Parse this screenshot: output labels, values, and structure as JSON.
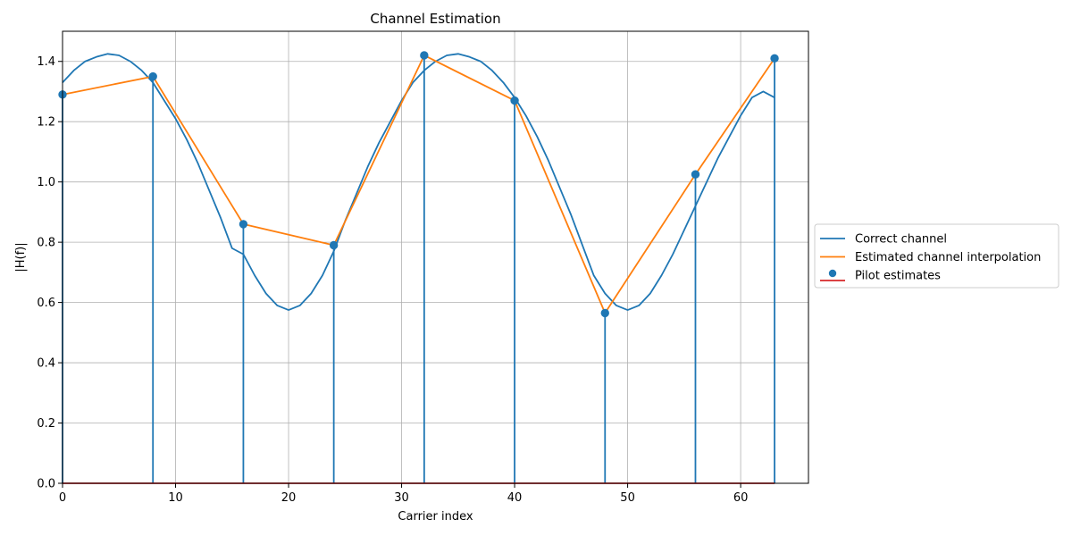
{
  "chart_data": {
    "type": "line",
    "title": "Channel Estimation",
    "xlabel": "Carrier index",
    "ylabel": "|H(f)|",
    "xlim": [
      0,
      66
    ],
    "ylim": [
      0,
      1.5
    ],
    "xticks": [
      0,
      10,
      20,
      30,
      40,
      50,
      60
    ],
    "yticks": [
      0.0,
      0.2,
      0.4,
      0.6,
      0.8,
      1.0,
      1.2,
      1.4
    ],
    "xtick_labels": [
      "0",
      "10",
      "20",
      "30",
      "40",
      "50",
      "60"
    ],
    "ytick_labels": [
      "0.0",
      "0.2",
      "0.4",
      "0.6",
      "0.8",
      "1.0",
      "1.2",
      "1.4"
    ],
    "grid": true,
    "legend_position": "outside right, center",
    "series": [
      {
        "name": "Correct channel",
        "kind": "line",
        "color": "#1f77b4",
        "x": [
          0,
          1,
          2,
          3,
          4,
          5,
          6,
          7,
          8,
          9,
          10,
          11,
          12,
          13,
          14,
          15,
          16,
          17,
          18,
          19,
          20,
          21,
          22,
          23,
          24,
          25,
          26,
          27,
          28,
          29,
          30,
          31,
          32,
          33,
          34,
          35,
          36,
          37,
          38,
          39,
          40,
          41,
          42,
          43,
          44,
          45,
          46,
          47,
          48,
          49,
          50,
          51,
          52,
          53,
          54,
          55,
          56,
          57,
          58,
          59,
          60,
          61,
          62,
          63
        ],
        "y": [
          1.33,
          1.37,
          1.4,
          1.415,
          1.425,
          1.42,
          1.4,
          1.37,
          1.33,
          1.27,
          1.21,
          1.14,
          1.06,
          0.97,
          0.88,
          0.78,
          0.76,
          0.69,
          0.63,
          0.59,
          0.575,
          0.59,
          0.63,
          0.69,
          0.77,
          0.87,
          0.96,
          1.05,
          1.13,
          1.2,
          1.27,
          1.33,
          1.37,
          1.4,
          1.42,
          1.425,
          1.415,
          1.4,
          1.37,
          1.33,
          1.28,
          1.22,
          1.15,
          1.07,
          0.98,
          0.89,
          0.79,
          0.69,
          0.63,
          0.59,
          0.575,
          0.59,
          0.63,
          0.69,
          0.76,
          0.84,
          0.92,
          1.0,
          1.08,
          1.15,
          1.22,
          1.28,
          1.3,
          1.28
        ]
      },
      {
        "name": "Estimated channel interpolation",
        "kind": "line",
        "color": "#ff7f0e",
        "x": [
          0,
          8,
          16,
          24,
          32,
          40,
          48,
          56,
          63
        ],
        "y": [
          1.29,
          1.35,
          0.86,
          0.79,
          1.42,
          1.27,
          0.565,
          1.025,
          1.41
        ]
      },
      {
        "name": "Pilot estimates",
        "kind": "stem",
        "color": "#1f77b4",
        "baseline_color": "#d62728",
        "x": [
          0,
          8,
          16,
          24,
          32,
          40,
          48,
          56,
          63
        ],
        "y": [
          1.29,
          1.35,
          0.86,
          0.79,
          1.42,
          1.27,
          0.565,
          1.025,
          1.41
        ]
      }
    ]
  }
}
